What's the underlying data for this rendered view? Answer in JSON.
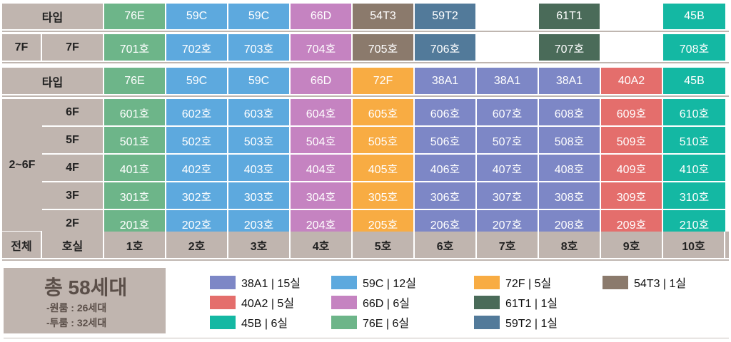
{
  "colors": {
    "76E": "#6db589",
    "59C": "#5da9de",
    "66D": "#c583c1",
    "54T3": "#8b7a6c",
    "59T2": "#527a9a",
    "61T1": "#4a6b59",
    "45B": "#14b8a3",
    "72F": "#f8ac43",
    "38A1": "#7d87c6",
    "40A2": "#e46e6c"
  },
  "top": {
    "type_label": "타입",
    "types": [
      "76E",
      "59C",
      "59C",
      "66D",
      "54T3",
      "59T2",
      "",
      "61T1",
      "",
      "45B"
    ],
    "floor_group": "7F",
    "floor": "7F",
    "units": [
      "701호",
      "702호",
      "703호",
      "704호",
      "705호",
      "706호",
      "",
      "707호",
      "",
      "708호"
    ]
  },
  "main": {
    "type_label": "타입",
    "types": [
      "76E",
      "59C",
      "59C",
      "66D",
      "72F",
      "38A1",
      "38A1",
      "38A1",
      "40A2",
      "45B"
    ],
    "floor_group": "2~6F",
    "rows": [
      {
        "floor": "6F",
        "units": [
          "601호",
          "602호",
          "603호",
          "604호",
          "605호",
          "606호",
          "607호",
          "608호",
          "609호",
          "610호"
        ]
      },
      {
        "floor": "5F",
        "units": [
          "501호",
          "502호",
          "503호",
          "504호",
          "505호",
          "506호",
          "507호",
          "508호",
          "509호",
          "510호"
        ]
      },
      {
        "floor": "4F",
        "units": [
          "401호",
          "402호",
          "403호",
          "404호",
          "405호",
          "406호",
          "407호",
          "408호",
          "409호",
          "410호"
        ]
      },
      {
        "floor": "3F",
        "units": [
          "301호",
          "302호",
          "303호",
          "304호",
          "305호",
          "306호",
          "307호",
          "308호",
          "309호",
          "310호"
        ]
      },
      {
        "floor": "2F",
        "units": [
          "201호",
          "202호",
          "203호",
          "204호",
          "205호",
          "206호",
          "207호",
          "208호",
          "209호",
          "210호"
        ]
      }
    ],
    "total_label": "전체",
    "room_label": "호실",
    "lines": [
      "1호",
      "2호",
      "3호",
      "4호",
      "5호",
      "6호",
      "7호",
      "8호",
      "9호",
      "10호"
    ]
  },
  "summary": {
    "title": "총 58세대",
    "line1": "-원룸 : 26세대",
    "line2": "-투룸 : 32세대"
  },
  "legend": [
    {
      "type": "38A1",
      "label": "38A1 | 15실"
    },
    {
      "type": "40A2",
      "label": "40A2 | 5실"
    },
    {
      "type": "45B",
      "label": "45B | 6실"
    },
    {
      "type": "59C",
      "label": "59C | 12실"
    },
    {
      "type": "66D",
      "label": "66D | 6실"
    },
    {
      "type": "76E",
      "label": "76E | 6실"
    },
    {
      "type": "72F",
      "label": "72F | 5실"
    },
    {
      "type": "61T1",
      "label": "61T1 | 1실"
    },
    {
      "type": "59T2",
      "label": "59T2 | 1실"
    },
    {
      "type": "54T3",
      "label": "54T3 | 1실"
    }
  ]
}
